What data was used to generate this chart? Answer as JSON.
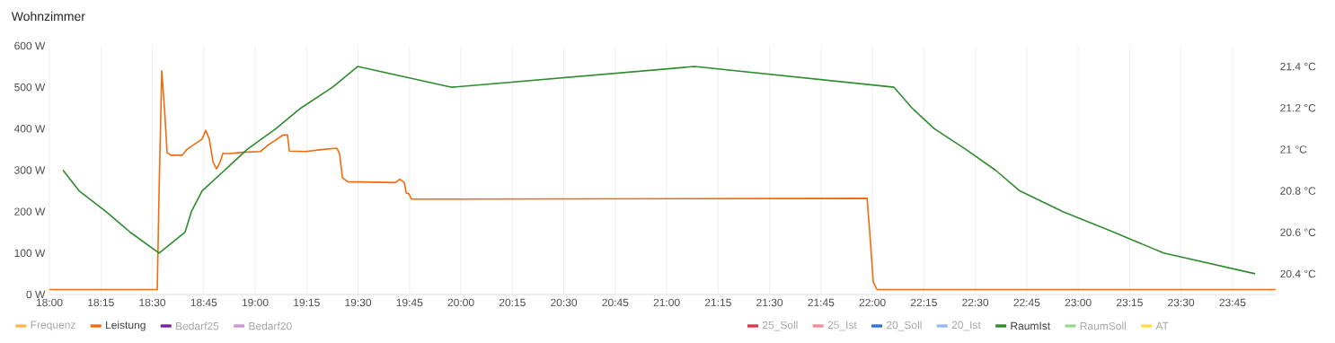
{
  "chart_data": {
    "type": "line",
    "title": "Wohnzimmer",
    "xlim": [
      18,
      23.96
    ],
    "ylim": [
      0,
      600
    ],
    "y2lim": [
      20.3,
      21.5
    ],
    "xticks": [
      {
        "value": 18,
        "label": "18:00"
      },
      {
        "value": 18.25,
        "label": "18:15"
      },
      {
        "value": 18.5,
        "label": "18:30"
      },
      {
        "value": 18.75,
        "label": "18:45"
      },
      {
        "value": 19,
        "label": "19:00"
      },
      {
        "value": 19.25,
        "label": "19:15"
      },
      {
        "value": 19.5,
        "label": "19:30"
      },
      {
        "value": 19.75,
        "label": "19:45"
      },
      {
        "value": 20,
        "label": "20:00"
      },
      {
        "value": 20.25,
        "label": "20:15"
      },
      {
        "value": 20.5,
        "label": "20:30"
      },
      {
        "value": 20.75,
        "label": "20:45"
      },
      {
        "value": 21,
        "label": "21:00"
      },
      {
        "value": 21.25,
        "label": "21:15"
      },
      {
        "value": 21.5,
        "label": "21:30"
      },
      {
        "value": 21.75,
        "label": "21:45"
      },
      {
        "value": 22,
        "label": "22:00"
      },
      {
        "value": 22.25,
        "label": "22:15"
      },
      {
        "value": 22.5,
        "label": "22:30"
      },
      {
        "value": 22.75,
        "label": "22:45"
      },
      {
        "value": 23,
        "label": "23:00"
      },
      {
        "value": 23.25,
        "label": "23:15"
      },
      {
        "value": 23.5,
        "label": "23:30"
      },
      {
        "value": 23.75,
        "label": "23:45"
      }
    ],
    "yticks": [
      {
        "value": 0,
        "label": "0 W"
      },
      {
        "value": 100,
        "label": "100 W"
      },
      {
        "value": 200,
        "label": "200 W"
      },
      {
        "value": 300,
        "label": "300 W"
      },
      {
        "value": 400,
        "label": "400 W"
      },
      {
        "value": 500,
        "label": "500 W"
      },
      {
        "value": 600,
        "label": "600 W"
      }
    ],
    "y2ticks": [
      {
        "value": 20.4,
        "label": "20.4 °C"
      },
      {
        "value": 20.6,
        "label": "20.6 °C"
      },
      {
        "value": 20.8,
        "label": "20.8 °C"
      },
      {
        "value": 21,
        "label": "21 °C"
      },
      {
        "value": 21.2,
        "label": "21.2 °C"
      },
      {
        "value": 21.4,
        "label": "21.4 °C"
      }
    ],
    "grid": "x",
    "legend": "bottom",
    "marker": "none",
    "line_style": "solid",
    "series": [
      {
        "name": "Frequenz",
        "color": "#ffb74d"
      },
      {
        "name": "Leistung",
        "color": "#f26a0c",
        "x": [
          18.0,
          18.524,
          18.533,
          18.546,
          18.559,
          18.572,
          18.59,
          18.646,
          18.668,
          18.721,
          18.742,
          18.76,
          18.777,
          18.795,
          18.812,
          18.83,
          18.843,
          18.878,
          18.939,
          19.026,
          19.061,
          19.092,
          19.135,
          19.157,
          19.166,
          19.245,
          19.332,
          19.397,
          19.41,
          19.424,
          19.45,
          19.681,
          19.703,
          19.725,
          19.734,
          19.747,
          19.76,
          21.974,
          21.987,
          22.004,
          22.022,
          23.96
        ],
        "values": [
          12,
          12,
          250,
          540,
          450,
          342,
          336,
          336,
          350,
          368,
          375,
          396,
          375,
          320,
          303,
          320,
          340,
          340,
          343,
          345,
          360,
          370,
          385,
          385,
          346,
          345,
          350,
          353,
          340,
          282,
          272,
          270,
          278,
          270,
          245,
          243,
          230,
          232,
          150,
          30,
          12,
          12
        ],
        "axis": "y"
      },
      {
        "name": "Bedarf25",
        "color": "#7b1fa2"
      },
      {
        "name": "Bedarf20",
        "color": "#ce93d8"
      },
      {
        "name": "25_Soll",
        "color": "#e5304a"
      },
      {
        "name": "25_Ist",
        "color": "#f48a94"
      },
      {
        "name": "20_Soll",
        "color": "#2f6fd6"
      },
      {
        "name": "20_Ist",
        "color": "#8fbaf2"
      },
      {
        "name": "RaumIst",
        "color": "#2e8b2e",
        "x": [
          18.066,
          18.144,
          18.275,
          18.393,
          18.533,
          18.659,
          18.69,
          18.742,
          18.852,
          18.961,
          19.1,
          19.223,
          19.376,
          19.498,
          19.956,
          21.135,
          22.105,
          22.192,
          22.301,
          22.454,
          22.598,
          22.716,
          22.926,
          23.175,
          23.415,
          23.86
        ],
        "values": [
          20.9,
          20.8,
          20.7,
          20.6,
          20.5,
          20.6,
          20.7,
          20.8,
          20.9,
          21.0,
          21.1,
          21.2,
          21.3,
          21.4,
          21.3,
          21.4,
          21.3,
          21.2,
          21.1,
          21.0,
          20.9,
          20.8,
          20.7,
          20.6,
          20.5,
          20.4
        ],
        "axis": "y2"
      },
      {
        "name": "RaumSoll",
        "color": "#98d88e"
      },
      {
        "name": "AT",
        "color": "#ffe03a"
      }
    ]
  }
}
